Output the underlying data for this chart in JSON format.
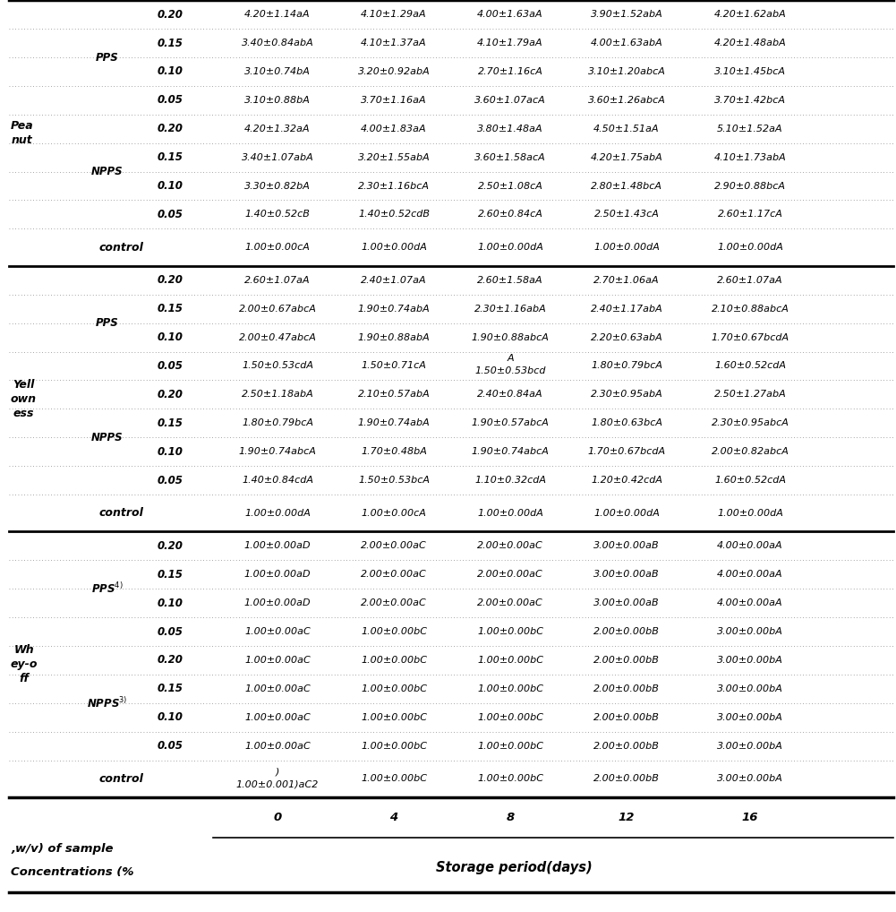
{
  "header_top": "Storage period(days)",
  "header_left_line1": "Concentrations (%",
  "header_left_line2": ",w/v) of sample",
  "col_headers": [
    "0",
    "4",
    "8",
    "12",
    "16"
  ],
  "sections": [
    {
      "section_label": "Wh\ney-o\nff",
      "rows": [
        {
          "group": "control",
          "conc": "",
          "values": [
            "1.00±0.001)aC2\n)",
            "1.00±0.00bC",
            "1.00±0.00bC",
            "2.00±0.00bB",
            "3.00±0.00bA"
          ]
        },
        {
          "group": "NPPS3)",
          "conc": "0.05",
          "values": [
            "1.00±0.00aC",
            "1.00±0.00bC",
            "1.00±0.00bC",
            "2.00±0.00bB",
            "3.00±0.00bA"
          ]
        },
        {
          "group": "NPPS3)",
          "conc": "0.10",
          "values": [
            "1.00±0.00aC",
            "1.00±0.00bC",
            "1.00±0.00bC",
            "2.00±0.00bB",
            "3.00±0.00bA"
          ]
        },
        {
          "group": "NPPS3)",
          "conc": "0.15",
          "values": [
            "1.00±0.00aC",
            "1.00±0.00bC",
            "1.00±0.00bC",
            "2.00±0.00bB",
            "3.00±0.00bA"
          ]
        },
        {
          "group": "NPPS3)",
          "conc": "0.20",
          "values": [
            "1.00±0.00aC",
            "1.00±0.00bC",
            "1.00±0.00bC",
            "2.00±0.00bB",
            "3.00±0.00bA"
          ]
        },
        {
          "group": "PPS4)",
          "conc": "0.05",
          "values": [
            "1.00±0.00aC",
            "1.00±0.00bC",
            "1.00±0.00bC",
            "2.00±0.00bB",
            "3.00±0.00bA"
          ]
        },
        {
          "group": "PPS4)",
          "conc": "0.10",
          "values": [
            "1.00±0.00aD",
            "2.00±0.00aC",
            "2.00±0.00aC",
            "3.00±0.00aB",
            "4.00±0.00aA"
          ]
        },
        {
          "group": "PPS4)",
          "conc": "0.15",
          "values": [
            "1.00±0.00aD",
            "2.00±0.00aC",
            "2.00±0.00aC",
            "3.00±0.00aB",
            "4.00±0.00aA"
          ]
        },
        {
          "group": "PPS4)",
          "conc": "0.20",
          "values": [
            "1.00±0.00aD",
            "2.00±0.00aC",
            "2.00±0.00aC",
            "3.00±0.00aB",
            "4.00±0.00aA"
          ]
        }
      ]
    },
    {
      "section_label": "Yell\nown\ness",
      "rows": [
        {
          "group": "control",
          "conc": "",
          "values": [
            "1.00±0.00dA",
            "1.00±0.00cA",
            "1.00±0.00dA",
            "1.00±0.00dA",
            "1.00±0.00dA"
          ]
        },
        {
          "group": "NPPS",
          "conc": "0.05",
          "values": [
            "1.40±0.84cdA",
            "1.50±0.53bcA",
            "1.10±0.32cdA",
            "1.20±0.42cdA",
            "1.60±0.52cdA"
          ]
        },
        {
          "group": "NPPS",
          "conc": "0.10",
          "values": [
            "1.90±0.74abcA",
            "1.70±0.48bA",
            "1.90±0.74abcA",
            "1.70±0.67bcdA",
            "2.00±0.82abcA"
          ]
        },
        {
          "group": "NPPS",
          "conc": "0.15",
          "values": [
            "1.80±0.79bcA",
            "1.90±0.74abA",
            "1.90±0.57abcA",
            "1.80±0.63bcA",
            "2.30±0.95abcA"
          ]
        },
        {
          "group": "NPPS",
          "conc": "0.20",
          "values": [
            "2.50±1.18abA",
            "2.10±0.57abA",
            "2.40±0.84aA",
            "2.30±0.95abA",
            "2.50±1.27abA"
          ]
        },
        {
          "group": "PPS",
          "conc": "0.05",
          "values": [
            "1.50±0.53cdA",
            "1.50±0.71cA",
            "1.50±0.53bcd\nA",
            "1.80±0.79bcA",
            "1.60±0.52cdA"
          ]
        },
        {
          "group": "PPS",
          "conc": "0.10",
          "values": [
            "2.00±0.47abcA",
            "1.90±0.88abA",
            "1.90±0.88abcA",
            "2.20±0.63abA",
            "1.70±0.67bcdA"
          ]
        },
        {
          "group": "PPS",
          "conc": "0.15",
          "values": [
            "2.00±0.67abcA",
            "1.90±0.74abA",
            "2.30±1.16abA",
            "2.40±1.17abA",
            "2.10±0.88abcA"
          ]
        },
        {
          "group": "PPS",
          "conc": "0.20",
          "values": [
            "2.60±1.07aA",
            "2.40±1.07aA",
            "2.60±1.58aA",
            "2.70±1.06aA",
            "2.60±1.07aA"
          ]
        }
      ]
    },
    {
      "section_label": "Pea\nnut",
      "rows": [
        {
          "group": "control",
          "conc": "",
          "values": [
            "1.00±0.00cA",
            "1.00±0.00dA",
            "1.00±0.00dA",
            "1.00±0.00dA",
            "1.00±0.00dA"
          ]
        },
        {
          "group": "NPPS",
          "conc": "0.05",
          "values": [
            "1.40±0.52cB",
            "1.40±0.52cdB",
            "2.60±0.84cA",
            "2.50±1.43cA",
            "2.60±1.17cA"
          ]
        },
        {
          "group": "NPPS",
          "conc": "0.10",
          "values": [
            "3.30±0.82bA",
            "2.30±1.16bcA",
            "2.50±1.08cA",
            "2.80±1.48bcA",
            "2.90±0.88bcA"
          ]
        },
        {
          "group": "NPPS",
          "conc": "0.15",
          "values": [
            "3.40±1.07abA",
            "3.20±1.55abA",
            "3.60±1.58acA",
            "4.20±1.75abA",
            "4.10±1.73abA"
          ]
        },
        {
          "group": "NPPS",
          "conc": "0.20",
          "values": [
            "4.20±1.32aA",
            "4.00±1.83aA",
            "3.80±1.48aA",
            "4.50±1.51aA",
            "5.10±1.52aA"
          ]
        },
        {
          "group": "PPS",
          "conc": "0.05",
          "values": [
            "3.10±0.88bA",
            "3.70±1.16aA",
            "3.60±1.07acA",
            "3.60±1.26abcA",
            "3.70±1.42bcA"
          ]
        },
        {
          "group": "PPS",
          "conc": "0.10",
          "values": [
            "3.10±0.74bA",
            "3.20±0.92abA",
            "2.70±1.16cA",
            "3.10±1.20abcA",
            "3.10±1.45bcA"
          ]
        },
        {
          "group": "PPS",
          "conc": "0.15",
          "values": [
            "3.40±0.84abA",
            "4.10±1.37aA",
            "4.10±1.79aA",
            "4.00±1.63abA",
            "4.20±1.48abA"
          ]
        },
        {
          "group": "PPS",
          "conc": "0.20",
          "values": [
            "4.20±1.14aA",
            "4.10±1.29aA",
            "4.00±1.63aA",
            "3.90±1.52abA",
            "4.20±1.62abA"
          ]
        }
      ]
    }
  ],
  "group_labels": {
    "NPPS3)": "NPPS$^{3)}$",
    "PPS4)": "PPS$^{4)}$",
    "NPPS": "NPPS",
    "PPS": "PPS",
    "control": "control"
  }
}
